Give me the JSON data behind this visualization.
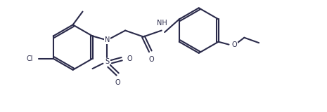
{
  "bg_color": "#ffffff",
  "line_color": "#2a2a4a",
  "line_width": 1.5,
  "figsize": [
    4.65,
    1.6
  ],
  "dpi": 100,
  "font_size": 7.0,
  "label_color": "#2a2a4a",
  "xlim": [
    0,
    9.3
  ],
  "ylim": [
    0,
    3.2
  ]
}
